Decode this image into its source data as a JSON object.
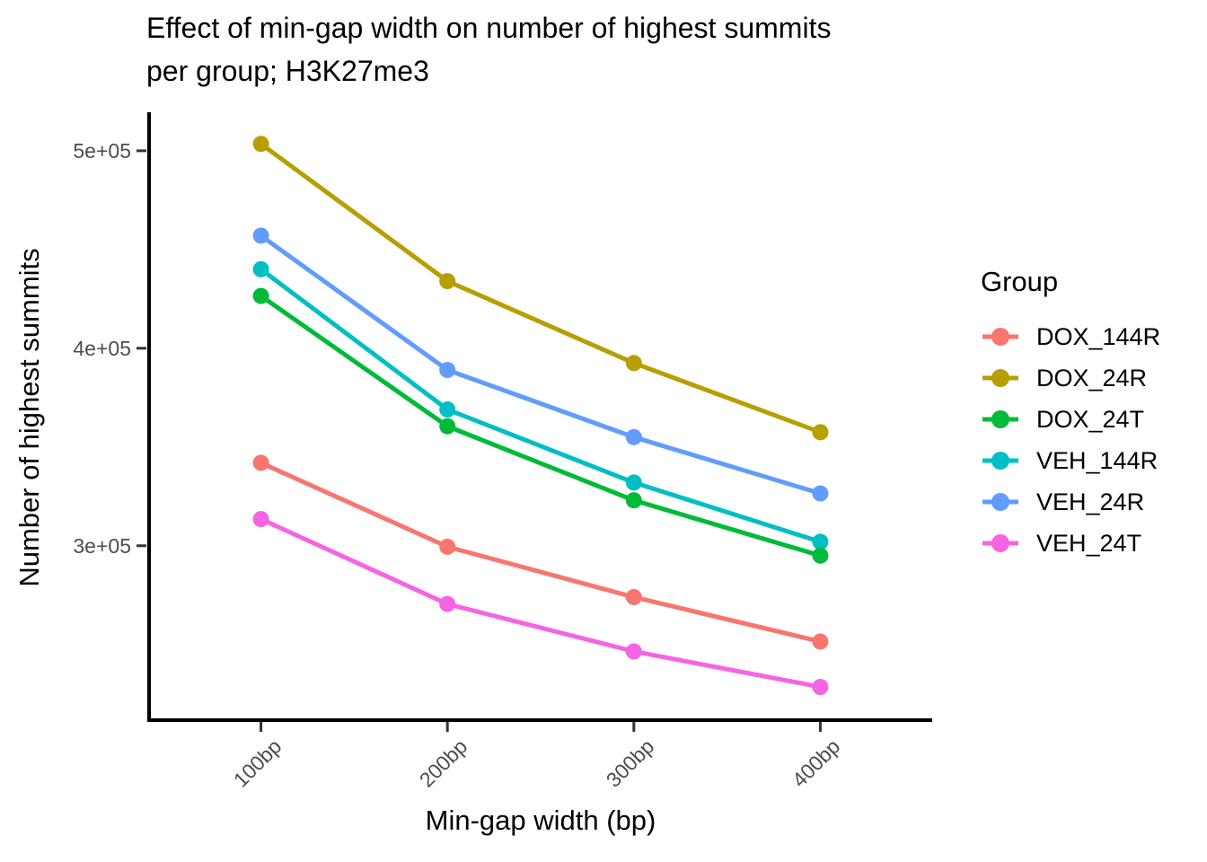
{
  "chart_data": {
    "type": "line",
    "title": "Effect of min-gap width on number of highest summits\nper group; H3K27me3",
    "xlabel": "Min-gap width (bp)",
    "ylabel": "Number of highest summits",
    "legend_title": "Group",
    "legend_position": "right",
    "grid": false,
    "theme": "classic",
    "categories": [
      "100bp",
      "200bp",
      "300bp",
      "400bp"
    ],
    "series": [
      {
        "name": "DOX_144R",
        "color": "#F8766D",
        "values": [
          342000,
          299500,
          274000,
          251500
        ]
      },
      {
        "name": "DOX_24R",
        "color": "#B79F00",
        "values": [
          503500,
          434000,
          392500,
          357500
        ]
      },
      {
        "name": "DOX_24T",
        "color": "#00BA38",
        "values": [
          426500,
          360500,
          323000,
          295000
        ]
      },
      {
        "name": "VEH_144R",
        "color": "#00BFC4",
        "values": [
          440000,
          369000,
          332000,
          302000
        ]
      },
      {
        "name": "VEH_24R",
        "color": "#619CFF",
        "values": [
          457000,
          389000,
          355000,
          326500
        ]
      },
      {
        "name": "VEH_24T",
        "color": "#F564E3",
        "values": [
          313500,
          270500,
          246500,
          228500
        ]
      }
    ],
    "y_ticks": [
      {
        "label": "3e+05",
        "value": 300000
      },
      {
        "label": "4e+05",
        "value": 400000
      },
      {
        "label": "5e+05",
        "value": 500000
      }
    ],
    "ylim": [
      211700,
      518600
    ],
    "axis_color": "#000000",
    "tick_color": "#333333",
    "tick_label_color": "#4d4d4d"
  }
}
